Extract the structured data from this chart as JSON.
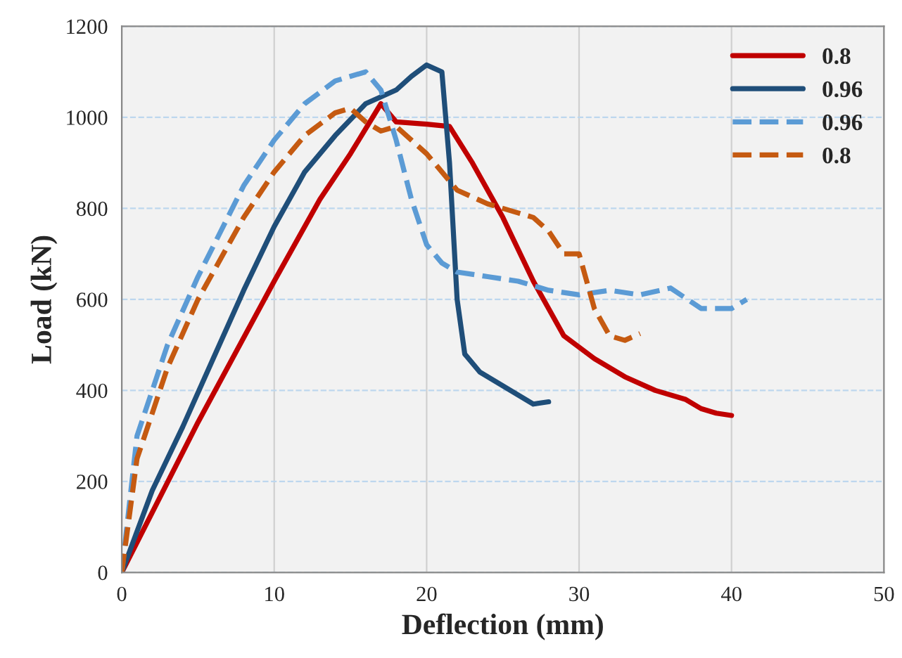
{
  "chart_data": {
    "type": "line",
    "xlabel": "Deflection (mm)",
    "ylabel": "Load (kN)",
    "xlim": [
      0,
      50
    ],
    "xticks": [
      0,
      10,
      20,
      30,
      40,
      50
    ],
    "ylim": [
      0,
      1200
    ],
    "yticks": [
      0,
      200,
      400,
      600,
      800,
      1000,
      1200
    ],
    "grid": true,
    "legend": "top right",
    "marker": "none",
    "series": [
      {
        "name": "0.8",
        "color": "#c00000",
        "line_style": "solid",
        "x": [
          0,
          5,
          10,
          13,
          15,
          17,
          18,
          20,
          21.5,
          23,
          25,
          27,
          29,
          31,
          33,
          35,
          37,
          38,
          39,
          40
        ],
        "values": [
          0,
          330,
          640,
          820,
          920,
          1030,
          990,
          985,
          980,
          900,
          780,
          640,
          520,
          470,
          430,
          400,
          380,
          360,
          350,
          345
        ]
      },
      {
        "name": "0.96",
        "color": "#1f4e79",
        "line_style": "solid",
        "x": [
          0,
          2,
          4,
          6,
          8,
          10,
          12,
          14,
          16,
          18,
          19,
          20,
          21,
          21.5,
          22,
          22.5,
          23.5,
          24.5,
          26,
          27,
          28
        ],
        "values": [
          0,
          180,
          320,
          470,
          620,
          760,
          880,
          960,
          1030,
          1060,
          1090,
          1115,
          1100,
          900,
          600,
          480,
          440,
          420,
          390,
          370,
          375
        ]
      },
      {
        "name": "0.96",
        "color": "#5b9bd5",
        "line_style": "dashed",
        "x": [
          0,
          1,
          3,
          5,
          8,
          10,
          12,
          14,
          16,
          17,
          18,
          19,
          20,
          21,
          22,
          24,
          26,
          28,
          30,
          32,
          34,
          36,
          38,
          40,
          41
        ],
        "values": [
          0,
          300,
          500,
          650,
          850,
          950,
          1030,
          1080,
          1100,
          1060,
          950,
          820,
          720,
          680,
          660,
          650,
          640,
          620,
          610,
          620,
          610,
          625,
          580,
          580,
          600
        ]
      },
      {
        "name": "0.8",
        "color": "#c55a11",
        "line_style": "dashed",
        "x": [
          0,
          1,
          3,
          5,
          8,
          10,
          12,
          14,
          15,
          16,
          17,
          18,
          20,
          22,
          24,
          26,
          27,
          28,
          29,
          30,
          31,
          32,
          33,
          34
        ],
        "values": [
          0,
          250,
          450,
          600,
          780,
          880,
          960,
          1010,
          1020,
          990,
          970,
          980,
          920,
          840,
          810,
          790,
          780,
          750,
          700,
          700,
          580,
          520,
          510,
          525
        ]
      }
    ]
  }
}
